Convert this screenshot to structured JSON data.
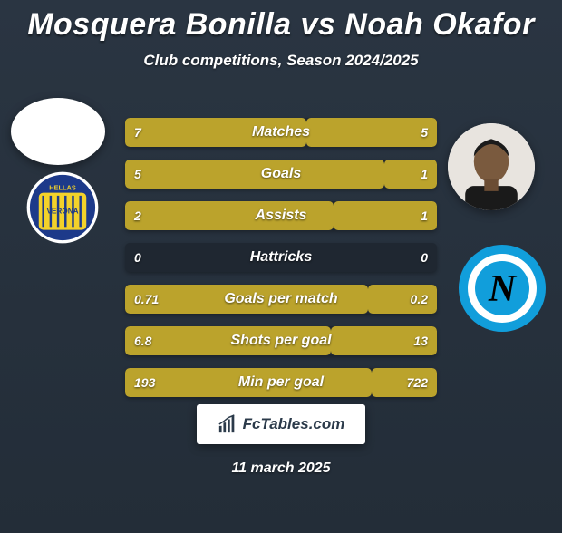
{
  "title": "Mosquera Bonilla vs Noah Okafor",
  "subtitle": "Club competitions, Season 2024/2025",
  "date": "11 march 2025",
  "brand": "FcTables.com",
  "colors": {
    "player1_bar": "#bba32c",
    "player2_bar": "#bba32c",
    "row_bg": "#1f2731",
    "napoli_outer": "#119edb",
    "napoli_inner": "#ffffff",
    "verona_blue": "#1d3a8a",
    "verona_yellow": "#f3d22a"
  },
  "stats": [
    {
      "label": "Matches",
      "p1": "7",
      "p2": "5",
      "p1_pct": 58,
      "p2_pct": 42
    },
    {
      "label": "Goals",
      "p1": "5",
      "p2": "1",
      "p1_pct": 83,
      "p2_pct": 17
    },
    {
      "label": "Assists",
      "p1": "2",
      "p2": "1",
      "p1_pct": 67,
      "p2_pct": 33
    },
    {
      "label": "Hattricks",
      "p1": "0",
      "p2": "0",
      "p1_pct": 0,
      "p2_pct": 0
    },
    {
      "label": "Goals per match",
      "p1": "0.71",
      "p2": "0.2",
      "p1_pct": 78,
      "p2_pct": 22
    },
    {
      "label": "Shots per goal",
      "p1": "6.8",
      "p2": "13",
      "p1_pct": 66,
      "p2_pct": 34
    },
    {
      "label": "Min per goal",
      "p1": "193",
      "p2": "722",
      "p1_pct": 79,
      "p2_pct": 21
    }
  ]
}
